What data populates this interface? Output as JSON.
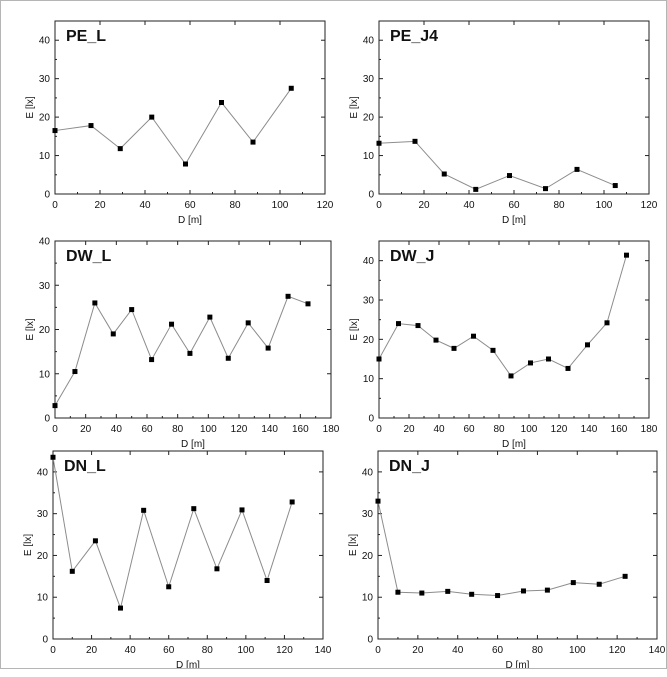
{
  "figure": {
    "panels_label": "six line plots of illuminance E versus distance D"
  },
  "chart_data": [
    {
      "id": "PE_L",
      "type": "line",
      "title": "PE_L",
      "xlabel": "D [m]",
      "ylabel": "E [lx]",
      "xlim": [
        0,
        120
      ],
      "ylim": [
        0,
        45
      ],
      "xticks": [
        0,
        20,
        40,
        60,
        80,
        100,
        120
      ],
      "yticks": [
        0,
        10,
        20,
        30,
        40
      ],
      "grid": false,
      "series": [
        {
          "x": [
            0,
            16,
            29,
            43,
            58,
            74,
            88,
            105
          ],
          "y": [
            16.5,
            17.8,
            11.8,
            20,
            7.8,
            23.8,
            13.5,
            27.5
          ]
        }
      ]
    },
    {
      "id": "PE_J4",
      "type": "line",
      "title": "PE_J4",
      "xlabel": "D [m]",
      "ylabel": "E [lx]",
      "xlim": [
        0,
        120
      ],
      "ylim": [
        0,
        45
      ],
      "xticks": [
        0,
        20,
        40,
        60,
        80,
        100,
        120
      ],
      "yticks": [
        0,
        10,
        20,
        30,
        40
      ],
      "grid": false,
      "series": [
        {
          "x": [
            0,
            16,
            29,
            43,
            58,
            74,
            88,
            105
          ],
          "y": [
            13.2,
            13.7,
            5.2,
            1.2,
            4.8,
            1.4,
            6.4,
            2.2
          ]
        }
      ]
    },
    {
      "id": "DW_L",
      "type": "line",
      "title": "DW_L",
      "xlabel": "D [m]",
      "ylabel": "E [lx]",
      "xlim": [
        0,
        180
      ],
      "ylim": [
        0,
        40
      ],
      "xticks": [
        0,
        20,
        40,
        60,
        80,
        100,
        120,
        140,
        160,
        180
      ],
      "yticks": [
        0,
        10,
        20,
        30,
        40
      ],
      "grid": false,
      "series": [
        {
          "x": [
            0,
            13,
            26,
            38,
            50,
            63,
            76,
            88,
            101,
            113,
            126,
            139,
            152,
            165
          ],
          "y": [
            2.8,
            10.5,
            26,
            19,
            24.5,
            13.2,
            21.2,
            14.6,
            22.8,
            13.5,
            21.5,
            15.8,
            27.5,
            25.8
          ]
        }
      ]
    },
    {
      "id": "DW_J",
      "type": "line",
      "title": "DW_J",
      "xlabel": "D [m]",
      "ylabel": "E [lx]",
      "xlim": [
        0,
        180
      ],
      "ylim": [
        0,
        45
      ],
      "xticks": [
        0,
        20,
        40,
        60,
        80,
        100,
        120,
        140,
        160,
        180
      ],
      "yticks": [
        0,
        10,
        20,
        30,
        40
      ],
      "grid": false,
      "series": [
        {
          "x": [
            0,
            13,
            26,
            38,
            50,
            63,
            76,
            88,
            101,
            113,
            126,
            139,
            152,
            165
          ],
          "y": [
            15,
            24,
            23.5,
            19.8,
            17.7,
            20.8,
            17.2,
            10.7,
            14,
            15,
            12.6,
            18.6,
            24.2,
            41.4
          ]
        }
      ]
    },
    {
      "id": "DN_L",
      "type": "line",
      "title": "DN_L",
      "xlabel": "D [m]",
      "ylabel": "E [lx]",
      "xlim": [
        0,
        140
      ],
      "ylim": [
        0,
        45
      ],
      "xticks": [
        0,
        20,
        40,
        60,
        80,
        100,
        120,
        140
      ],
      "yticks": [
        0,
        10,
        20,
        30,
        40
      ],
      "grid": false,
      "series": [
        {
          "x": [
            0,
            10,
            22,
            35,
            47,
            60,
            73,
            85,
            98,
            111,
            124
          ],
          "y": [
            43.5,
            16.2,
            23.5,
            7.4,
            30.8,
            12.5,
            31.2,
            16.8,
            30.9,
            14,
            32.8
          ]
        }
      ]
    },
    {
      "id": "DN_J",
      "type": "line",
      "title": "DN_J",
      "xlabel": "D [m]",
      "ylabel": "E [lx]",
      "xlim": [
        0,
        140
      ],
      "ylim": [
        0,
        45
      ],
      "xticks": [
        0,
        20,
        40,
        60,
        80,
        100,
        120,
        140
      ],
      "yticks": [
        0,
        10,
        20,
        30,
        40
      ],
      "grid": false,
      "series": [
        {
          "x": [
            0,
            10,
            22,
            35,
            47,
            60,
            73,
            85,
            98,
            111,
            124
          ],
          "y": [
            33,
            11.2,
            11,
            11.4,
            10.7,
            10.4,
            11.5,
            11.7,
            13.5,
            13.1,
            15
          ]
        }
      ]
    }
  ]
}
